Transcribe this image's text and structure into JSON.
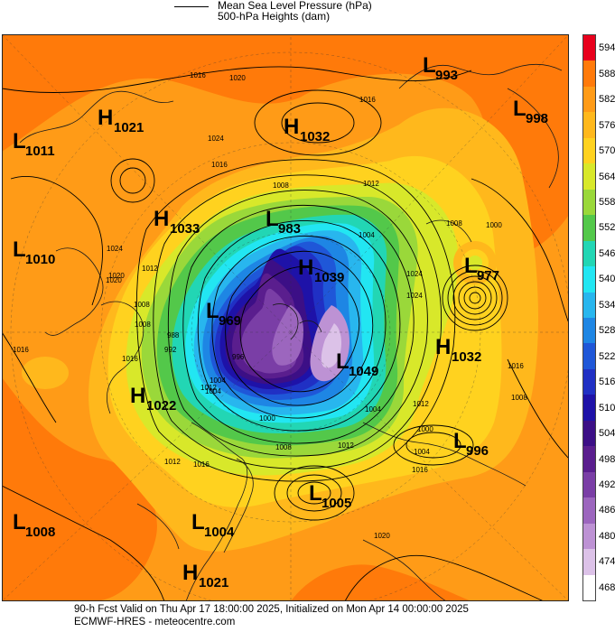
{
  "legend": {
    "line_label": "Mean Sea Level Pressure (hPa)",
    "fill_label": "500-hPa Heights (dam)"
  },
  "scale": {
    "labels": [
      "594",
      "588",
      "582",
      "576",
      "570",
      "564",
      "558",
      "552",
      "546",
      "540",
      "534",
      "528",
      "522",
      "516",
      "510",
      "504",
      "498",
      "492",
      "486",
      "480",
      "474",
      "468"
    ],
    "colors": [
      "#e8001c",
      "#ff7a0a",
      "#ff9b17",
      "#ffb81c",
      "#ffd21f",
      "#d8e82a",
      "#9ad83a",
      "#53c84a",
      "#22d6b4",
      "#22e6f2",
      "#28b6ee",
      "#1e86e4",
      "#1f57d8",
      "#2030c4",
      "#1e12a8",
      "#3c0f86",
      "#5a1e8e",
      "#7a3ea6",
      "#9c66be",
      "#bd92d4",
      "#dcc2e8",
      "#ffffff"
    ]
  },
  "systems": [
    {
      "type": "L",
      "value": "993"
    },
    {
      "type": "L",
      "value": "998"
    },
    {
      "type": "H",
      "value": "1021"
    },
    {
      "type": "H",
      "value": "1032"
    },
    {
      "type": "L",
      "value": "1011"
    },
    {
      "type": "H",
      "value": "1033"
    },
    {
      "type": "L",
      "value": "983"
    },
    {
      "type": "L",
      "value": "1010"
    },
    {
      "type": "H",
      "value": "1039"
    },
    {
      "type": "L",
      "value": "977"
    },
    {
      "type": "L",
      "value": "969"
    },
    {
      "type": "H",
      "value": "1032"
    },
    {
      "type": "L",
      "value": "1049"
    },
    {
      "type": "H",
      "value": "1022"
    },
    {
      "type": "L",
      "value": "996"
    },
    {
      "type": "L",
      "value": "1005"
    },
    {
      "type": "L",
      "value": "1008"
    },
    {
      "type": "L",
      "value": "1004"
    },
    {
      "type": "H",
      "value": "1021"
    }
  ],
  "contour_labels": [
    "1016",
    "1020",
    "1016",
    "1024",
    "1016",
    "1008",
    "1012",
    "1024",
    "1004",
    "1020",
    "1012",
    "1008",
    "1016",
    "1024",
    "1020",
    "1016",
    "1000",
    "1008",
    "1012",
    "988",
    "992",
    "996",
    "1004",
    "1000",
    "1008",
    "1012",
    "1016",
    "1004",
    "1008",
    "1012",
    "1020",
    "1016",
    "1000",
    "1004",
    "1024",
    "1008",
    "1012",
    "1016",
    "1004"
  ],
  "footer": {
    "line1": "90-h Fcst Valid on Thu Apr 17 18:00:00 2025, Initialized on Mon Apr 14 00:00:00 2025",
    "line2": "ECMWF-HRES  - meteocentre.com"
  }
}
